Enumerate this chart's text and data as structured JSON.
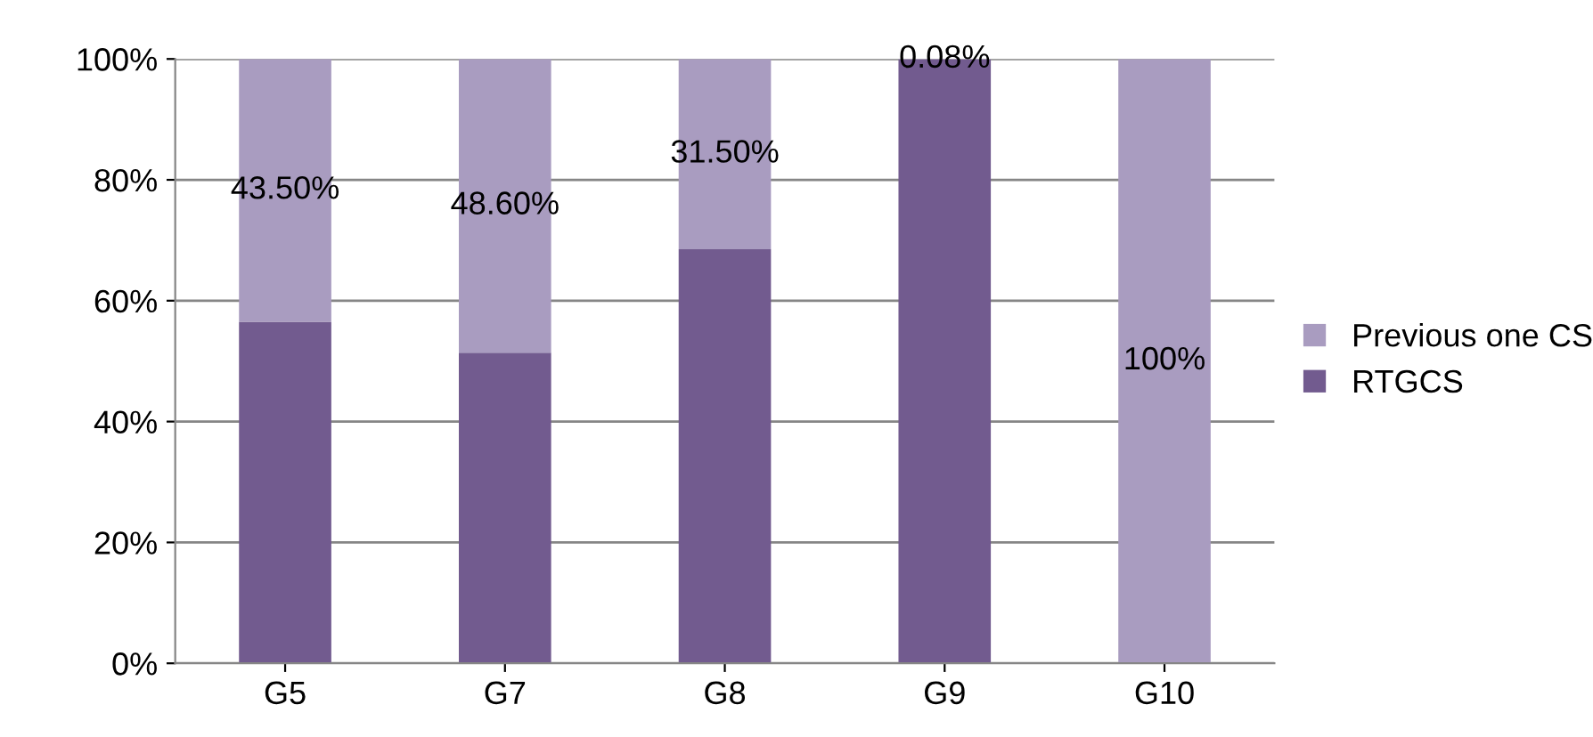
{
  "chart_data": {
    "type": "bar",
    "stacked": true,
    "categories": [
      "G5",
      "G7",
      "G8",
      "G9",
      "G10"
    ],
    "series": [
      {
        "name": "RTGCS",
        "color": "#725b8f",
        "values": [
          56.5,
          51.4,
          68.5,
          99.92,
          0
        ]
      },
      {
        "name": "Previous one CS",
        "color": "#a99cc0",
        "values": [
          43.5,
          48.6,
          31.5,
          0.08,
          100
        ],
        "value_labels": [
          "43.50%",
          "48.60%",
          "31.50%",
          "0.08%",
          "100%"
        ]
      }
    ],
    "ylim": [
      0,
      100
    ],
    "yticks": [
      {
        "value": 0,
        "label": "0%"
      },
      {
        "value": 20,
        "label": "20%"
      },
      {
        "value": 40,
        "label": "40%"
      },
      {
        "value": 60,
        "label": "60%"
      },
      {
        "value": 80,
        "label": "80%"
      },
      {
        "value": 100,
        "label": "100%"
      }
    ],
    "grid": "y",
    "legend": "right"
  }
}
